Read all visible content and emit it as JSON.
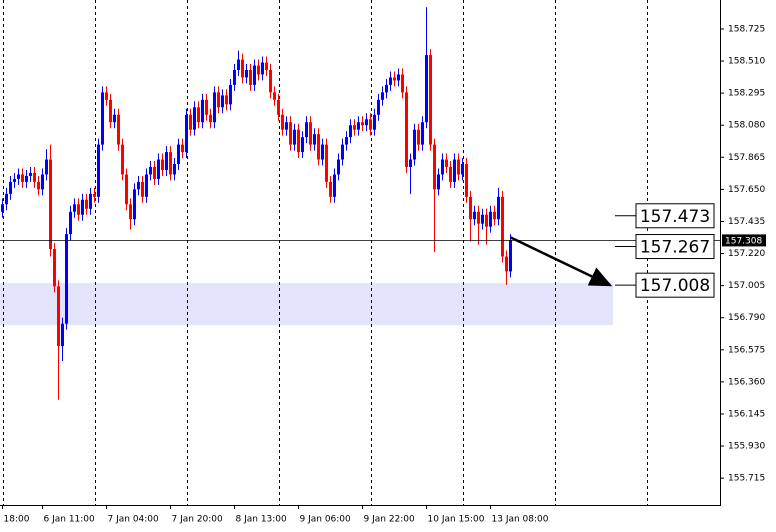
{
  "chart_data": {
    "type": "candlestick",
    "categories": [
      "18:00",
      null,
      null,
      null,
      null,
      null,
      null,
      null,
      null,
      null,
      "6 Jan 11:00",
      null,
      null,
      null,
      null,
      null,
      null,
      null,
      null,
      null,
      null,
      null,
      null,
      null,
      null,
      null,
      "7 Jan 04:00",
      null,
      null,
      null,
      null,
      null,
      null,
      null,
      null,
      null,
      null,
      null,
      null,
      null,
      null,
      null,
      "7 Jan 20:00",
      null,
      null,
      null,
      null,
      null,
      null,
      null,
      null,
      null,
      null,
      null,
      null,
      null,
      null,
      null,
      "8 Jan 13:00",
      null,
      null,
      null,
      null,
      null,
      null,
      null,
      null,
      null,
      null,
      null,
      null,
      null,
      null,
      null,
      "9 Jan 06:00",
      null,
      null,
      null,
      null,
      null,
      null,
      null,
      null,
      null,
      null,
      null,
      null,
      null,
      null,
      null,
      "9 Jan 22:00",
      null,
      null,
      null,
      null,
      null,
      null,
      null,
      null,
      null,
      null,
      null,
      null,
      null,
      null,
      null,
      "10 Jan 15:00",
      null,
      null,
      null,
      null,
      null,
      null,
      null,
      null,
      null,
      null,
      null,
      null,
      null,
      null,
      null,
      "13 Jan 08:00",
      null,
      null,
      null,
      null,
      null
    ],
    "open": [
      157.5,
      157.55,
      157.62,
      157.7,
      157.72,
      157.75,
      157.7,
      157.74,
      157.76,
      157.7,
      157.65,
      157.75,
      157.85,
      157.25,
      157.0,
      156.6,
      156.75,
      157.35,
      157.5,
      157.55,
      157.48,
      157.58,
      157.52,
      157.62,
      157.6,
      157.95,
      158.3,
      158.25,
      158.1,
      158.15,
      157.95,
      157.75,
      157.55,
      157.45,
      157.65,
      157.7,
      157.6,
      157.75,
      157.8,
      157.72,
      157.85,
      157.78,
      157.9,
      157.75,
      157.82,
      157.95,
      157.9,
      158.15,
      158.05,
      158.2,
      158.1,
      158.25,
      158.15,
      158.1,
      158.3,
      158.2,
      158.28,
      158.22,
      158.35,
      158.45,
      158.52,
      158.4,
      158.45,
      158.35,
      158.48,
      158.42,
      158.5,
      158.45,
      158.3,
      158.25,
      158.15,
      158.05,
      158.1,
      157.95,
      158.05,
      157.9,
      158.0,
      158.1,
      157.95,
      158.02,
      157.85,
      157.95,
      157.7,
      157.6,
      157.75,
      157.85,
      157.95,
      158.0,
      158.08,
      158.05,
      158.1,
      158.08,
      158.12,
      158.05,
      158.15,
      158.25,
      158.3,
      158.35,
      158.4,
      158.38,
      158.42,
      158.3,
      157.8,
      157.85,
      158.05,
      157.95,
      158.1,
      158.55,
      157.95,
      157.65,
      157.75,
      157.85,
      157.8,
      157.7,
      157.85,
      157.75,
      157.82,
      157.6,
      157.45,
      157.5,
      157.42,
      157.48,
      157.4,
      157.5,
      157.45,
      157.6,
      157.2,
      157.1
    ],
    "high": [
      157.59,
      157.66,
      157.74,
      157.76,
      157.79,
      157.79,
      157.78,
      157.8,
      157.8,
      157.74,
      157.79,
      157.92,
      157.95,
      157.29,
      157.04,
      156.79,
      157.39,
      157.54,
      157.59,
      157.59,
      157.62,
      157.62,
      157.66,
      157.66,
      157.99,
      158.34,
      158.34,
      158.29,
      158.19,
      158.19,
      157.99,
      157.79,
      157.59,
      157.69,
      157.74,
      157.74,
      157.79,
      157.84,
      157.84,
      157.89,
      157.89,
      157.94,
      157.94,
      157.86,
      157.99,
      157.99,
      158.19,
      158.19,
      158.24,
      158.24,
      158.29,
      158.29,
      158.19,
      158.34,
      158.34,
      158.32,
      158.32,
      158.39,
      158.49,
      158.58,
      158.56,
      158.49,
      158.49,
      158.52,
      158.52,
      158.54,
      158.54,
      158.49,
      158.34,
      158.29,
      158.19,
      158.14,
      158.14,
      158.09,
      158.09,
      158.04,
      158.14,
      158.14,
      158.06,
      158.06,
      157.99,
      157.99,
      157.74,
      157.79,
      157.89,
      157.99,
      158.04,
      158.12,
      158.12,
      158.14,
      158.14,
      158.16,
      158.16,
      158.19,
      158.29,
      158.34,
      158.39,
      158.44,
      158.44,
      158.46,
      158.46,
      158.34,
      157.89,
      158.09,
      158.09,
      158.14,
      158.87,
      158.59,
      157.99,
      157.79,
      157.89,
      157.89,
      157.84,
      157.89,
      157.89,
      157.86,
      157.86,
      157.64,
      157.54,
      157.54,
      157.52,
      157.52,
      157.54,
      157.54,
      157.66,
      157.64,
      157.24,
      157.35
    ],
    "low": [
      157.46,
      157.51,
      157.58,
      157.66,
      157.68,
      157.66,
      157.66,
      157.7,
      157.66,
      157.61,
      157.61,
      157.71,
      157.2,
      156.96,
      156.24,
      156.5,
      156.71,
      157.31,
      157.46,
      157.44,
      157.44,
      157.48,
      157.48,
      157.56,
      157.56,
      157.91,
      158.21,
      158.06,
      158.06,
      157.91,
      157.71,
      157.51,
      157.38,
      157.41,
      157.61,
      157.56,
      157.56,
      157.71,
      157.68,
      157.68,
      157.74,
      157.74,
      157.71,
      157.71,
      157.78,
      157.86,
      157.86,
      158.01,
      158.01,
      158.06,
      158.06,
      158.11,
      158.06,
      158.06,
      158.16,
      158.16,
      158.18,
      158.18,
      158.31,
      158.41,
      158.36,
      158.36,
      158.31,
      158.31,
      158.38,
      158.38,
      158.41,
      158.26,
      158.21,
      158.11,
      158.01,
      158.01,
      157.91,
      157.91,
      157.86,
      157.86,
      157.96,
      157.91,
      157.91,
      157.81,
      157.81,
      157.66,
      157.56,
      157.56,
      157.71,
      157.81,
      157.91,
      157.96,
      158.01,
      158.01,
      158.04,
      158.04,
      158.01,
      158.01,
      158.11,
      158.21,
      158.26,
      158.31,
      158.34,
      158.34,
      158.26,
      157.76,
      157.62,
      157.81,
      157.91,
      157.91,
      158.06,
      157.91,
      157.23,
      157.61,
      157.71,
      157.76,
      157.66,
      157.66,
      157.71,
      157.71,
      157.56,
      157.3,
      157.41,
      157.28,
      157.38,
      157.28,
      157.36,
      157.41,
      157.41,
      157.16,
      157.01,
      157.06
    ],
    "close": [
      157.55,
      157.62,
      157.7,
      157.72,
      157.75,
      157.7,
      157.74,
      157.76,
      157.7,
      157.65,
      157.75,
      157.85,
      157.25,
      157.0,
      156.6,
      156.75,
      157.35,
      157.5,
      157.55,
      157.48,
      157.58,
      157.52,
      157.62,
      157.6,
      157.95,
      158.3,
      158.25,
      158.1,
      158.15,
      157.95,
      157.75,
      157.55,
      157.45,
      157.65,
      157.7,
      157.6,
      157.75,
      157.8,
      157.72,
      157.85,
      157.78,
      157.9,
      157.75,
      157.82,
      157.95,
      157.9,
      158.15,
      158.05,
      158.2,
      158.1,
      158.25,
      158.15,
      158.1,
      158.3,
      158.2,
      158.28,
      158.22,
      158.35,
      158.45,
      158.52,
      158.4,
      158.45,
      158.35,
      158.48,
      158.42,
      158.5,
      158.45,
      158.3,
      158.25,
      158.15,
      158.05,
      158.1,
      157.95,
      158.05,
      157.9,
      158.0,
      158.1,
      157.95,
      158.02,
      157.85,
      157.95,
      157.7,
      157.6,
      157.75,
      157.85,
      157.95,
      158.0,
      158.08,
      158.05,
      158.1,
      158.08,
      158.12,
      158.05,
      158.15,
      158.25,
      158.3,
      158.35,
      158.4,
      158.38,
      158.42,
      158.3,
      157.8,
      157.85,
      158.05,
      157.95,
      158.1,
      158.55,
      157.95,
      157.65,
      157.75,
      157.85,
      157.8,
      157.7,
      157.85,
      157.75,
      157.82,
      157.6,
      157.45,
      157.5,
      157.42,
      157.48,
      157.4,
      157.5,
      157.45,
      157.6,
      157.2,
      157.1,
      157.308
    ],
    "up_color": "#0000ff",
    "down_color": "#ff0000",
    "ylim": [
      155.535,
      158.919
    ],
    "yticks": [
      155.715,
      {
        "value": 155.93,
        "label": "155.930"
      },
      156.145,
      {
        "value": 156.36,
        "label": "156.360"
      },
      156.575,
      {
        "value": 156.79,
        "label": "156.790"
      },
      157.005,
      {
        "value": 157.22,
        "label": "157.220"
      },
      157.435,
      {
        "value": 157.65,
        "label": "157.650"
      },
      157.865,
      {
        "value": 158.08,
        "label": "158.080"
      },
      158.295,
      {
        "value": 158.51,
        "label": "158.510"
      },
      158.725
    ],
    "zone": [
      156.741,
      157.022
    ],
    "zone_color": "#e1e4fa",
    "levels": [
      157.473,
      157.267,
      157.008
    ]
  }
}
